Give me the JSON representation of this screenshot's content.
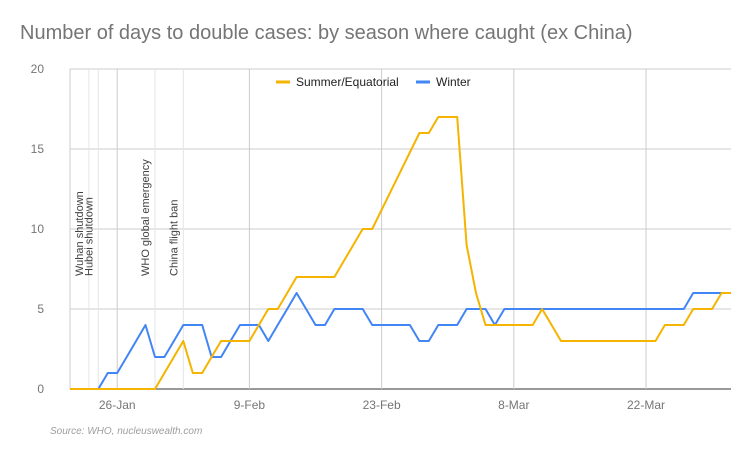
{
  "chart_data": {
    "type": "line",
    "title": "Number of days to double cases: by season where caught (ex China)",
    "source": "Source: WHO, nucleuswealth.com",
    "xlabel": "",
    "ylabel": "",
    "x_start": "2020-01-21",
    "x_ticks": [
      {
        "label": "26-Jan",
        "date": "2020-01-26"
      },
      {
        "label": "9-Feb",
        "date": "2020-02-09"
      },
      {
        "label": "23-Feb",
        "date": "2020-02-23"
      },
      {
        "label": "8-Mar",
        "date": "2020-03-08"
      },
      {
        "label": "22-Mar",
        "date": "2020-03-22"
      }
    ],
    "y_ticks": [
      0,
      5,
      10,
      15,
      20
    ],
    "ylim": [
      0,
      20
    ],
    "grid": true,
    "legend": "top-center",
    "annotations": [
      {
        "label": "Wuhan shutdown",
        "date": "2020-01-23"
      },
      {
        "label": "Hubei shutdown",
        "date": "2020-01-24"
      },
      {
        "label": "WHO global emergency",
        "date": "2020-01-30"
      },
      {
        "label": "China flight ban",
        "date": "2020-02-02"
      }
    ],
    "series": [
      {
        "name": "Summer/Equatorial",
        "color": "#f4b400",
        "points": [
          [
            "2020-01-21",
            0
          ],
          [
            "2020-01-22",
            0
          ],
          [
            "2020-01-23",
            0
          ],
          [
            "2020-01-24",
            0
          ],
          [
            "2020-01-25",
            0
          ],
          [
            "2020-01-26",
            0
          ],
          [
            "2020-01-27",
            0
          ],
          [
            "2020-01-28",
            0
          ],
          [
            "2020-01-29",
            0
          ],
          [
            "2020-01-30",
            0
          ],
          [
            "2020-02-02",
            3
          ],
          [
            "2020-02-03",
            1
          ],
          [
            "2020-02-04",
            1
          ],
          [
            "2020-02-05",
            2
          ],
          [
            "2020-02-06",
            3
          ],
          [
            "2020-02-07",
            3
          ],
          [
            "2020-02-08",
            3
          ],
          [
            "2020-02-09",
            3
          ],
          [
            "2020-02-10",
            4
          ],
          [
            "2020-02-11",
            5
          ],
          [
            "2020-02-12",
            5
          ],
          [
            "2020-02-13",
            6
          ],
          [
            "2020-02-14",
            7
          ],
          [
            "2020-02-15",
            7
          ],
          [
            "2020-02-16",
            7
          ],
          [
            "2020-02-17",
            7
          ],
          [
            "2020-02-18",
            7
          ],
          [
            "2020-02-21",
            10
          ],
          [
            "2020-02-22",
            10
          ],
          [
            "2020-02-27",
            16
          ],
          [
            "2020-02-28",
            16
          ],
          [
            "2020-02-29",
            17
          ],
          [
            "2020-03-01",
            17
          ],
          [
            "2020-03-02",
            17
          ],
          [
            "2020-03-03",
            9
          ],
          [
            "2020-03-04",
            6
          ],
          [
            "2020-03-05",
            4
          ],
          [
            "2020-03-06",
            4
          ],
          [
            "2020-03-07",
            4
          ],
          [
            "2020-03-08",
            4
          ],
          [
            "2020-03-09",
            4
          ],
          [
            "2020-03-10",
            4
          ],
          [
            "2020-03-11",
            5
          ],
          [
            "2020-03-12",
            4
          ],
          [
            "2020-03-13",
            3
          ],
          [
            "2020-03-14",
            3
          ],
          [
            "2020-03-23",
            3
          ],
          [
            "2020-03-24",
            4
          ],
          [
            "2020-03-25",
            4
          ],
          [
            "2020-03-26",
            4
          ],
          [
            "2020-03-27",
            5
          ],
          [
            "2020-03-28",
            5
          ],
          [
            "2020-03-29",
            5
          ],
          [
            "2020-03-30",
            6
          ],
          [
            "2020-03-31",
            6
          ]
        ]
      },
      {
        "name": "Winter",
        "color": "#4285f4",
        "points": [
          [
            "2020-01-21",
            0
          ],
          [
            "2020-01-22",
            0
          ],
          [
            "2020-01-23",
            0
          ],
          [
            "2020-01-24",
            0
          ],
          [
            "2020-01-25",
            1
          ],
          [
            "2020-01-26",
            1
          ],
          [
            "2020-01-27",
            2
          ],
          [
            "2020-01-28",
            3
          ],
          [
            "2020-01-29",
            4
          ],
          [
            "2020-01-30",
            2
          ],
          [
            "2020-01-31",
            2
          ],
          [
            "2020-02-01",
            3
          ],
          [
            "2020-02-02",
            4
          ],
          [
            "2020-02-03",
            4
          ],
          [
            "2020-02-04",
            4
          ],
          [
            "2020-02-05",
            2
          ],
          [
            "2020-02-06",
            2
          ],
          [
            "2020-02-07",
            3
          ],
          [
            "2020-02-08",
            4
          ],
          [
            "2020-02-09",
            4
          ],
          [
            "2020-02-10",
            4
          ],
          [
            "2020-02-11",
            3
          ],
          [
            "2020-02-12",
            4
          ],
          [
            "2020-02-13",
            5
          ],
          [
            "2020-02-14",
            6
          ],
          [
            "2020-02-15",
            5
          ],
          [
            "2020-02-16",
            4
          ],
          [
            "2020-02-17",
            4
          ],
          [
            "2020-02-18",
            5
          ],
          [
            "2020-02-19",
            5
          ],
          [
            "2020-02-20",
            5
          ],
          [
            "2020-02-21",
            5
          ],
          [
            "2020-02-22",
            4
          ],
          [
            "2020-02-23",
            4
          ],
          [
            "2020-02-24",
            4
          ],
          [
            "2020-02-25",
            4
          ],
          [
            "2020-02-26",
            4
          ],
          [
            "2020-02-27",
            3
          ],
          [
            "2020-02-28",
            3
          ],
          [
            "2020-02-29",
            4
          ],
          [
            "2020-03-01",
            4
          ],
          [
            "2020-03-02",
            4
          ],
          [
            "2020-03-03",
            5
          ],
          [
            "2020-03-04",
            5
          ],
          [
            "2020-03-05",
            5
          ],
          [
            "2020-03-06",
            4
          ],
          [
            "2020-03-07",
            5
          ],
          [
            "2020-03-08",
            5
          ],
          [
            "2020-03-09",
            5
          ],
          [
            "2020-03-10",
            5
          ],
          [
            "2020-03-24",
            5
          ],
          [
            "2020-03-25",
            5
          ],
          [
            "2020-03-26",
            5
          ],
          [
            "2020-03-27",
            6
          ],
          [
            "2020-03-28",
            6
          ],
          [
            "2020-03-29",
            6
          ],
          [
            "2020-03-30",
            6
          ],
          [
            "2020-03-31",
            6
          ]
        ]
      }
    ]
  }
}
